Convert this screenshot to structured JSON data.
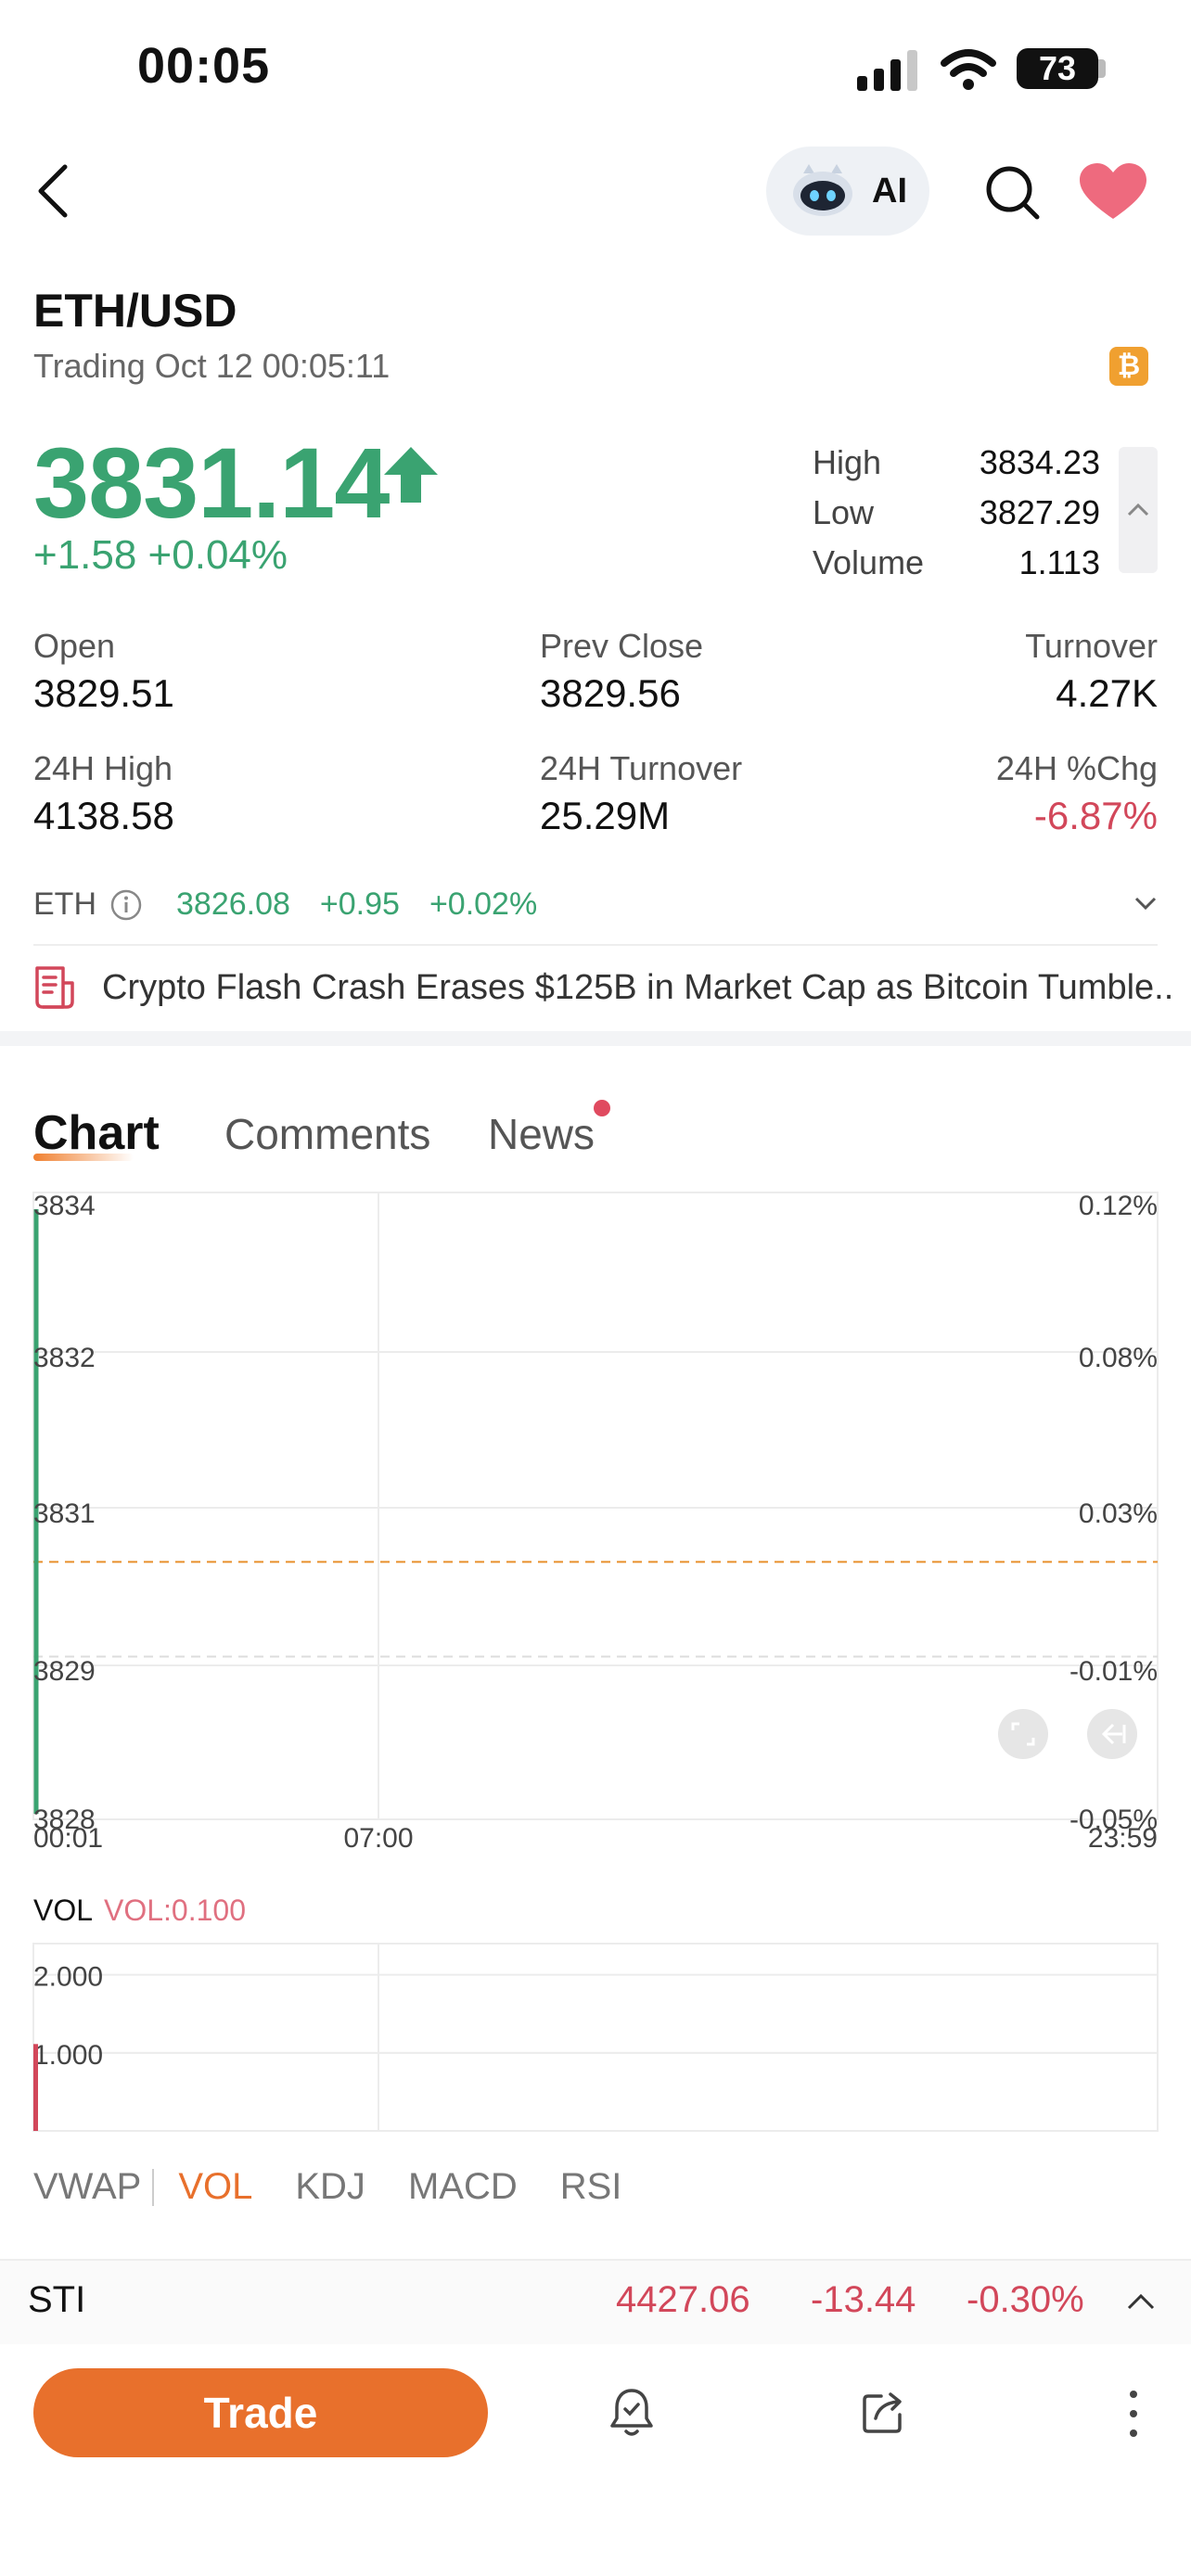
{
  "status_bar": {
    "time": "00:05",
    "battery": "73"
  },
  "nav": {
    "ai_label": "AI"
  },
  "header": {
    "pair": "ETH/USD",
    "trading_status": "Trading Oct 12 00:05:11",
    "price": "3831.14",
    "change": "+1.58 +0.04%"
  },
  "quick_stats": [
    {
      "label": "High",
      "value": "3834.23"
    },
    {
      "label": "Low",
      "value": "3827.29"
    },
    {
      "label": "Volume",
      "value": "1.113"
    }
  ],
  "stats": {
    "open": {
      "label": "Open",
      "value": "3829.51"
    },
    "prev_close": {
      "label": "Prev Close",
      "value": "3829.56"
    },
    "turnover": {
      "label": "Turnover",
      "value": "4.27K"
    },
    "high_24h": {
      "label": "24H High",
      "value": "4138.58"
    },
    "turnover_24h": {
      "label": "24H Turnover",
      "value": "25.29M"
    },
    "chg_24h": {
      "label": "24H %Chg",
      "value": "-6.87%"
    }
  },
  "underlying": {
    "name": "ETH",
    "price": "3826.08",
    "change": "+0.95",
    "change_pct": "+0.02%"
  },
  "news_flash": "Crypto Flash Crash Erases $125B in Market Cap as Bitcoin Tumble...",
  "tabs": [
    {
      "label": "Chart",
      "active": true
    },
    {
      "label": "Comments",
      "active": false
    },
    {
      "label": "News",
      "active": false
    }
  ],
  "price_chart": {
    "y_labels": [
      "3834",
      "3832",
      "3831",
      "3829",
      "3828"
    ],
    "pct_labels": [
      "0.12%",
      "0.08%",
      "0.03%",
      "-0.01%",
      "-0.05%"
    ],
    "x_labels": [
      "00:01",
      "07:00",
      "23:59"
    ],
    "ylim": [
      3828,
      3834
    ],
    "prev_close": 3829.56,
    "reference": 3830.5,
    "series_low": 3827.29,
    "series_high": 3834.23
  },
  "volume_chart": {
    "title": "VOL",
    "subtitle": "VOL:0.100",
    "y_labels": [
      "2.000",
      "1.000"
    ],
    "ylim": [
      0,
      2.4
    ],
    "bar_value": 1.113
  },
  "indicators": [
    {
      "label": "VWAP",
      "active": false
    },
    {
      "label": "VOL",
      "active": true
    },
    {
      "label": "KDJ",
      "active": false
    },
    {
      "label": "MACD",
      "active": false
    },
    {
      "label": "RSI",
      "active": false
    }
  ],
  "sti": {
    "name": "STI",
    "value": "4427.06",
    "change": "-13.44",
    "change_pct": "-0.30%"
  },
  "bottom_bar": {
    "trade_label": "Trade"
  },
  "colors": {
    "up": "#3aa371",
    "down": "#d2475a",
    "accent": "#e8702c"
  }
}
